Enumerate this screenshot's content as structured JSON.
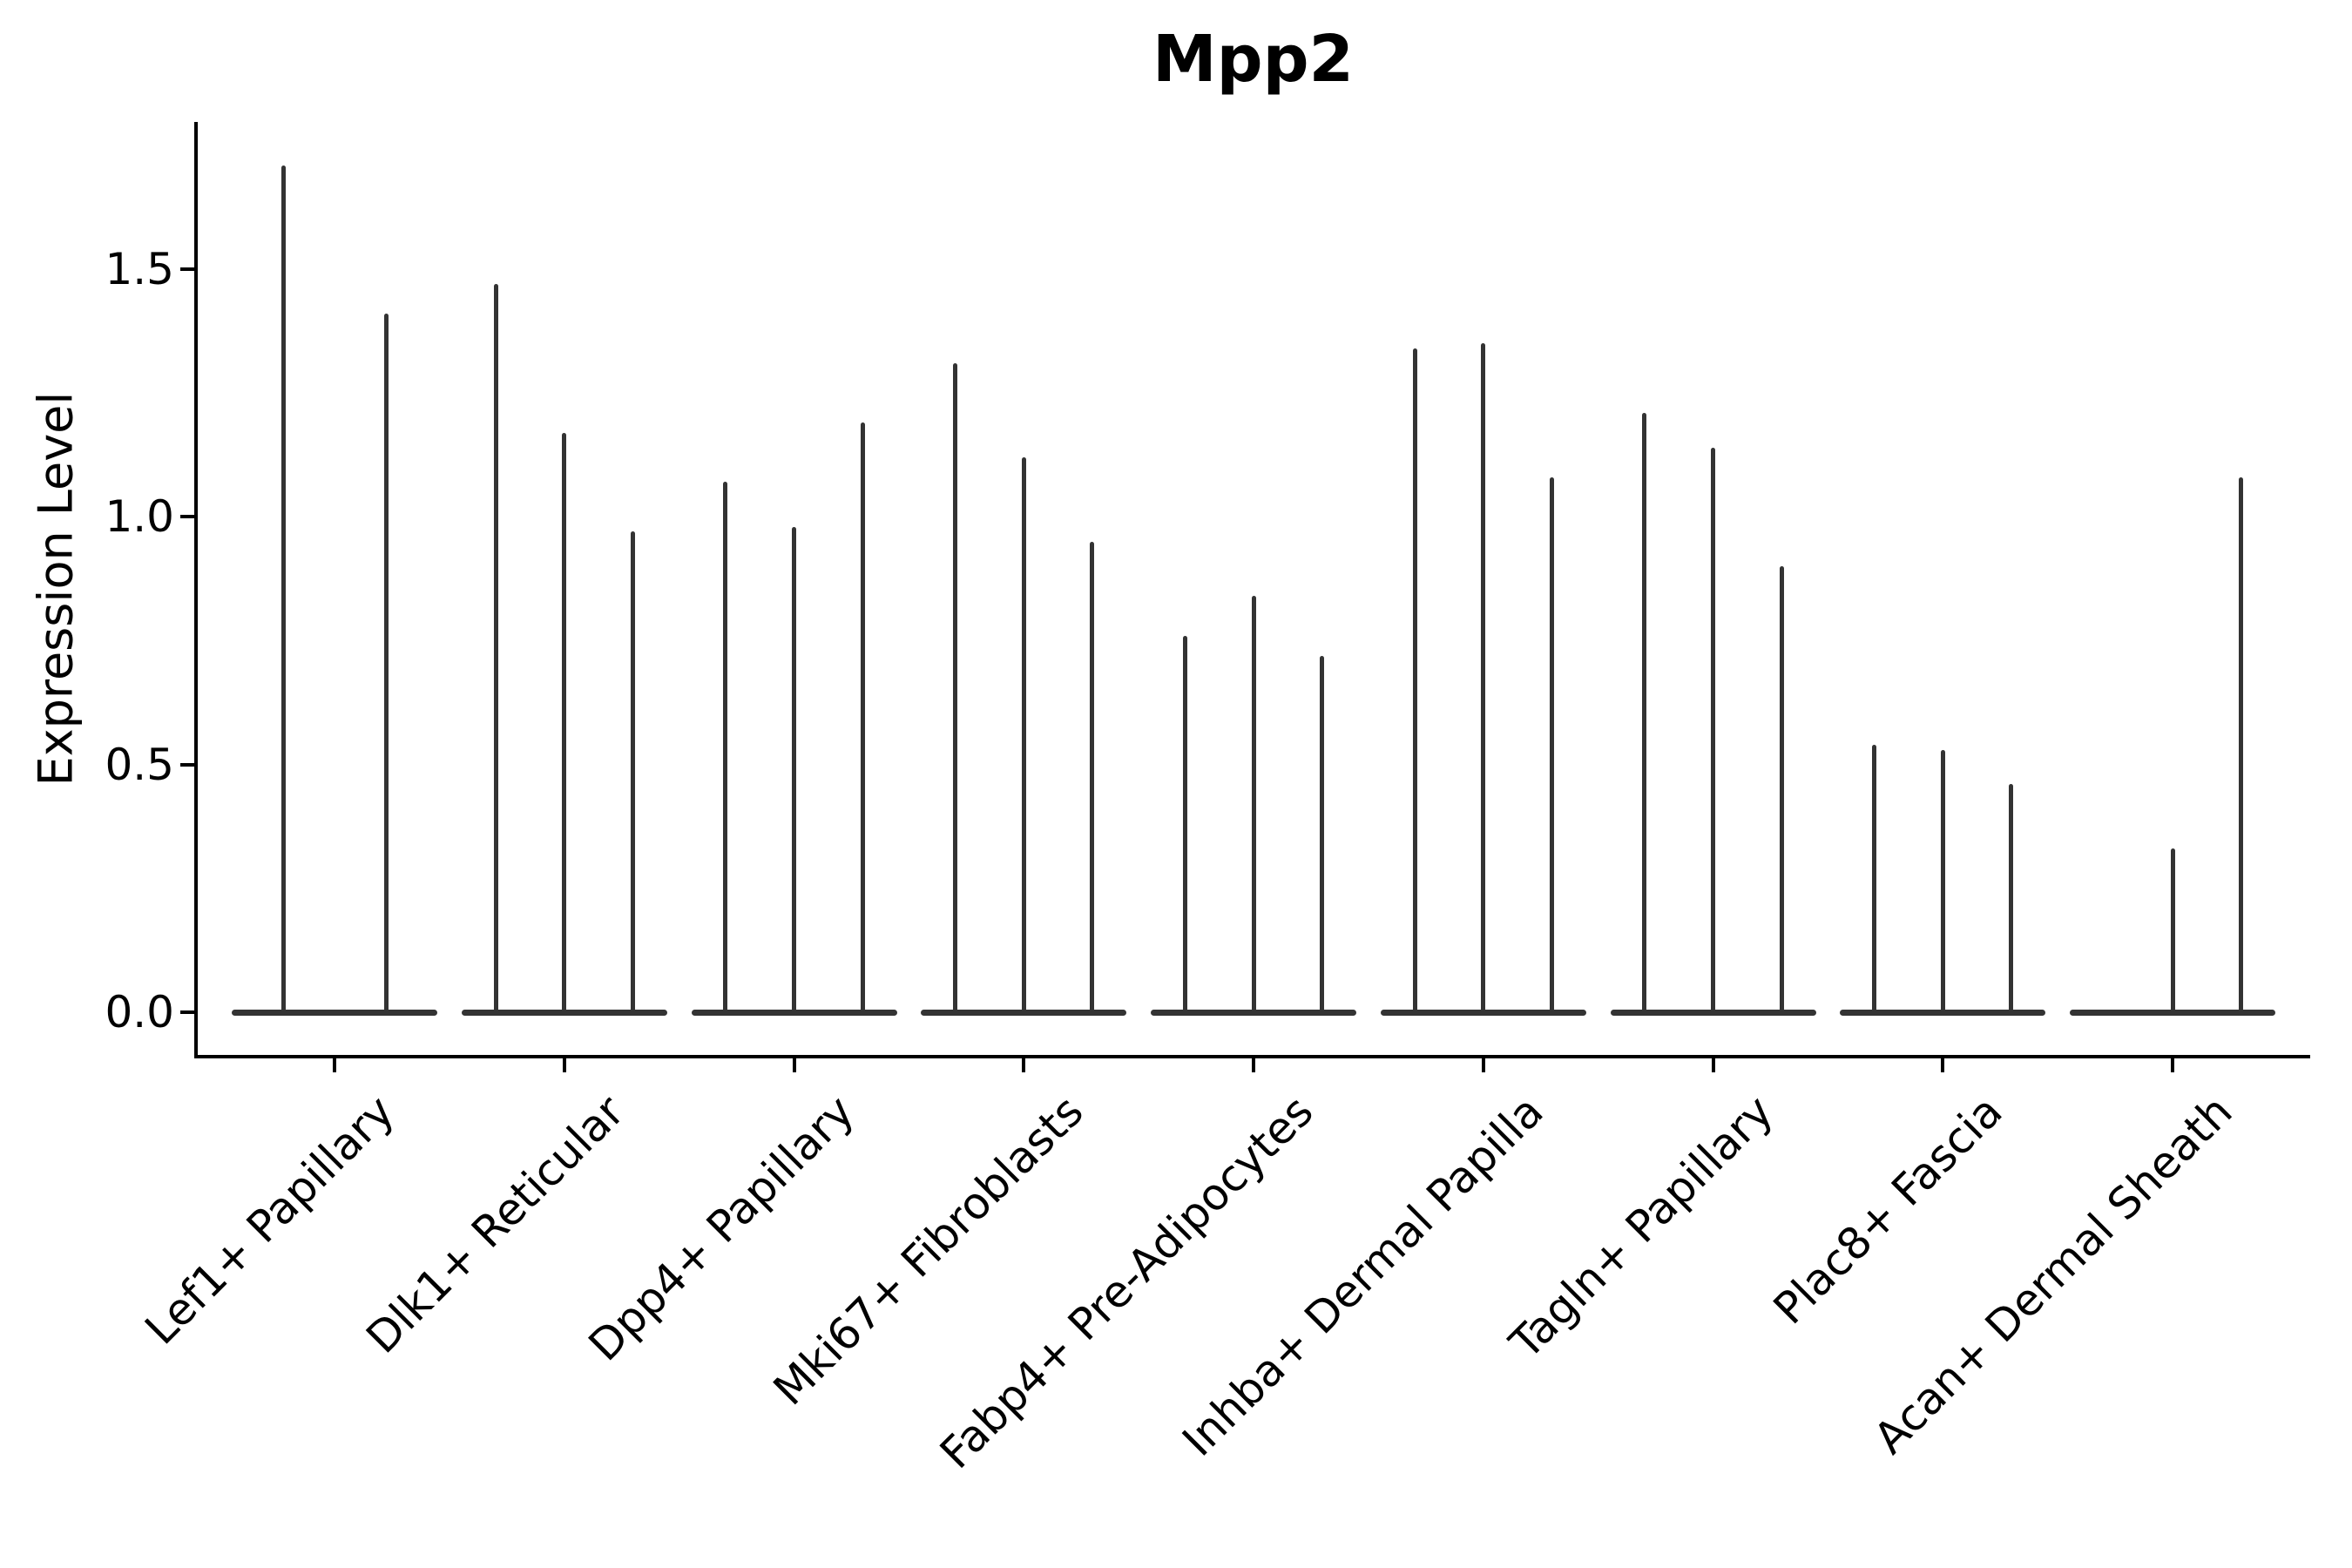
{
  "title": "Mpp2",
  "chart_data": {
    "type": "violin",
    "title": "Mpp2",
    "ylabel": "Expression Level",
    "xlabel": "",
    "ylim": [
      -0.09,
      1.8
    ],
    "yticks": [
      0.0,
      0.5,
      1.0,
      1.5
    ],
    "ytick_labels": [
      "0.0",
      "0.5",
      "1.0",
      "1.5"
    ],
    "grid": false,
    "legend_position": "none",
    "violin_color": "#333333",
    "spine_color": "#000000",
    "background_color": "#ffffff",
    "x_label_rotation_deg": 45,
    "categories": [
      "Lef1+ Papillary",
      "Dlk1+ Reticular",
      "Dpp4+ Papillary",
      "Mki67+ Fibroblasts",
      "Fabp4+ Pre-Adipocytes",
      "Inhba+ Dermal Papilla",
      "Tagln+ Papillary",
      "Plac8+ Fascia",
      "Acan+ Dermal Sheath"
    ],
    "series": [
      {
        "category": "Lef1+ Papillary",
        "violin_max_values": [
          1.71,
          1.41
        ]
      },
      {
        "category": "Dlk1+ Reticular",
        "violin_max_values": [
          1.47,
          1.17,
          0.97
        ]
      },
      {
        "category": "Dpp4+ Papillary",
        "violin_max_values": [
          1.07,
          0.98,
          1.19
        ]
      },
      {
        "category": "Mki67+ Fibroblasts",
        "violin_max_values": [
          1.31,
          1.12,
          0.95
        ]
      },
      {
        "category": "Fabp4+ Pre-Adipocytes",
        "violin_max_values": [
          0.76,
          0.84,
          0.72
        ]
      },
      {
        "category": "Inhba+ Dermal Papilla",
        "violin_max_values": [
          1.34,
          1.35,
          1.08
        ]
      },
      {
        "category": "Tagln+ Papillary",
        "violin_max_values": [
          1.21,
          1.14,
          0.9
        ]
      },
      {
        "category": "Plac8+ Fascia",
        "violin_max_values": [
          0.54,
          0.53,
          0.46
        ]
      },
      {
        "category": "Acan+ Dermal Sheath",
        "violin_max_values": [
          0.0,
          0.33,
          1.08
        ]
      }
    ],
    "note": "Each category shows narrow violins (one per sample) collapsed to a flat base at 0 with a thin spike up to the max expression value."
  }
}
